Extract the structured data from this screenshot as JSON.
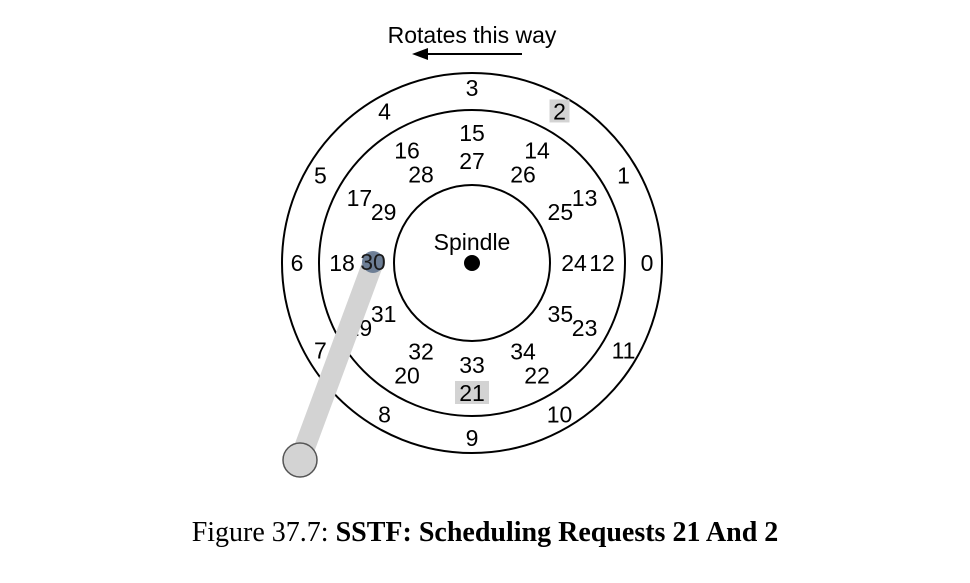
{
  "diagram": {
    "rotation_label": "Rotates this way",
    "spindle_label": "Spindle",
    "outer_track": [
      "0",
      "1",
      "2",
      "3",
      "4",
      "5",
      "6",
      "7",
      "8",
      "9",
      "10",
      "11"
    ],
    "middle_track": [
      "12",
      "13",
      "14",
      "15",
      "16",
      "17",
      "18",
      "19",
      "20",
      "21",
      "22",
      "23"
    ],
    "inner_track": [
      "24",
      "25",
      "26",
      "27",
      "28",
      "29",
      "30",
      "31",
      "32",
      "33",
      "34",
      "35"
    ],
    "highlighted_requests": [
      "21",
      "2"
    ],
    "head_position": "30",
    "colors": {
      "highlight": "#d3d3d3",
      "arm": "#d3d3d3",
      "head": "#5b6f8a",
      "line": "#000000"
    }
  },
  "caption": {
    "prefix": "Figure 37.7: ",
    "title": "SSTF: Scheduling Requests 21 And 2"
  }
}
